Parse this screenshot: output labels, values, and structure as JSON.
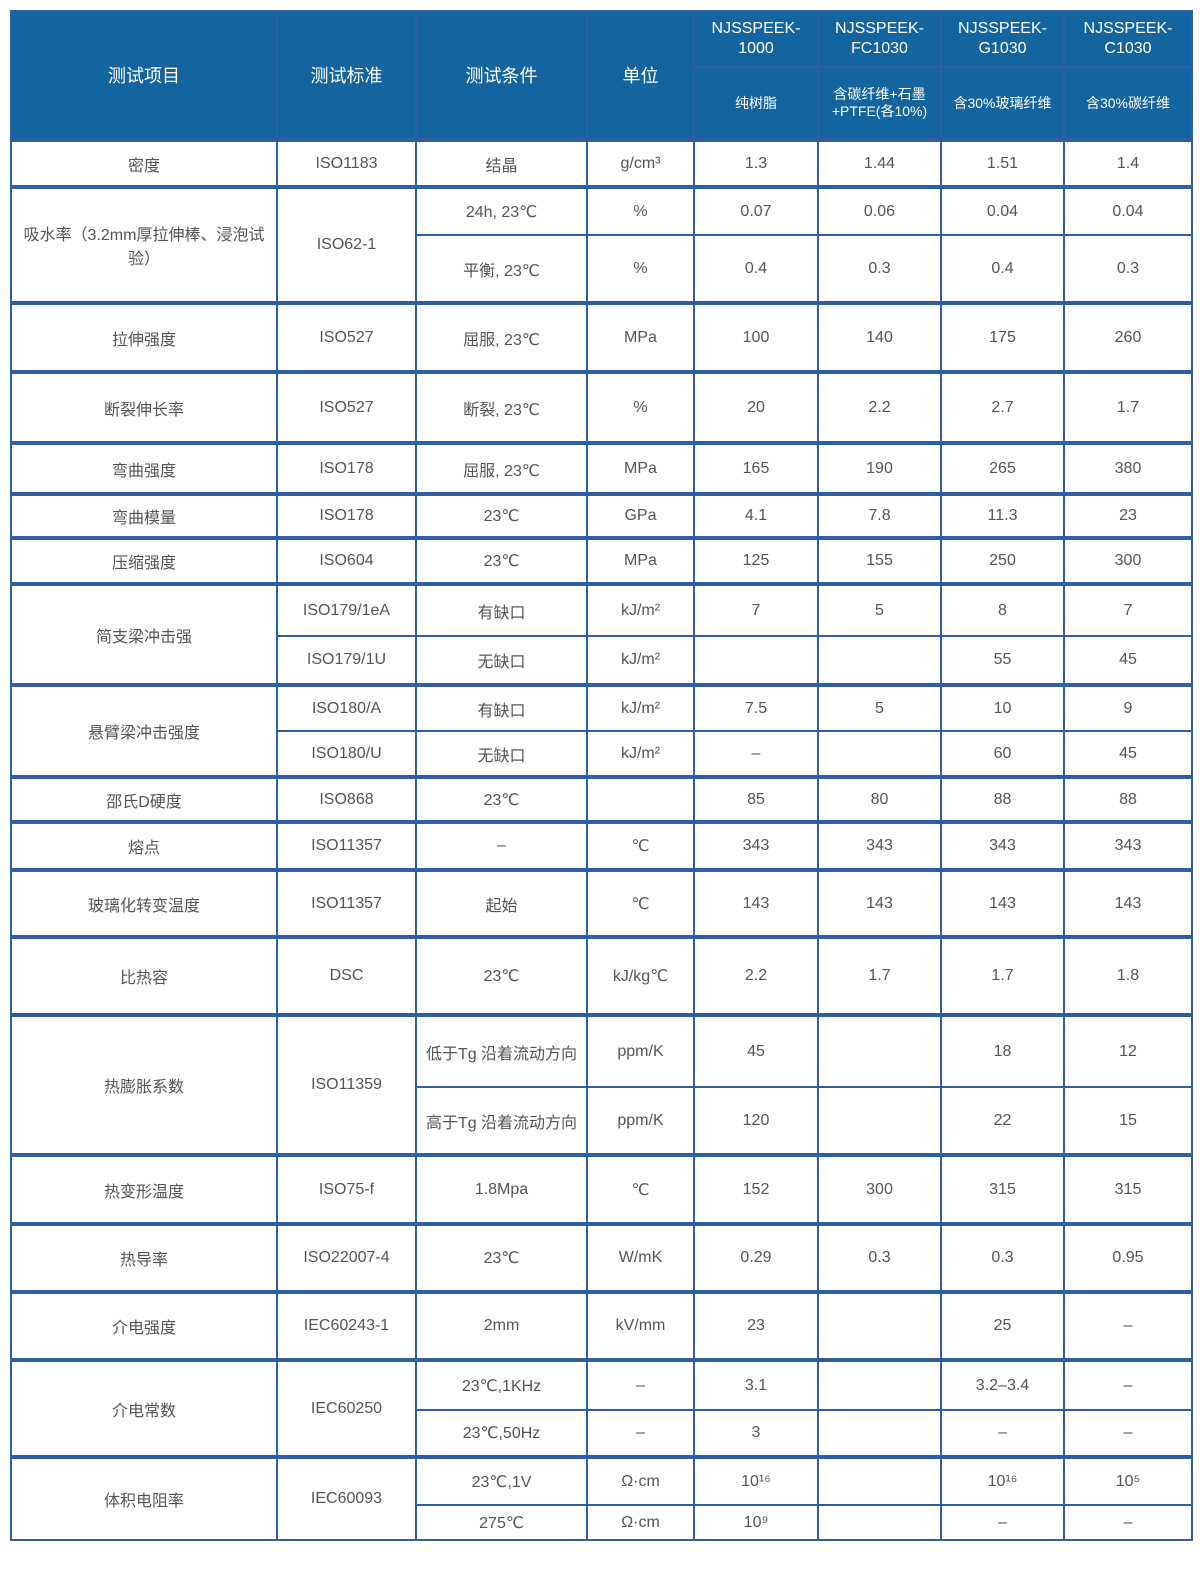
{
  "header": {
    "item": "测试项目",
    "standard": "测试标准",
    "condition": "测试条件",
    "unit": "单位",
    "models": [
      {
        "name": "NJSSPEEK-1000",
        "desc": "纯树脂"
      },
      {
        "name": "NJSSPEEK-FC1030",
        "desc": "含碳纤维+石墨+PTFE(各10%)"
      },
      {
        "name": "NJSSPEEK-G1030",
        "desc": "含30%玻璃纤维"
      },
      {
        "name": "NJSSPEEK-C1030",
        "desc": "含30%碳纤维"
      }
    ]
  },
  "colors": {
    "header_bg": "#13649f",
    "border": "#2f5da8",
    "text": "#555555"
  },
  "groups": [
    {
      "item": "密度",
      "standard": "ISO1183",
      "rows": [
        {
          "condition": "结晶",
          "unit": "g/cm³",
          "values": [
            "1.3",
            "1.44",
            "1.51",
            "1.4"
          ]
        }
      ]
    },
    {
      "item": "吸水率（3.2mm厚拉伸棒、浸泡试验）",
      "standard": "ISO62-1",
      "rows": [
        {
          "condition": "24h, 23℃",
          "unit": "%",
          "values": [
            "0.07",
            "0.06",
            "0.04",
            "0.04"
          ]
        },
        {
          "condition": "平衡, 23℃",
          "unit": "%",
          "values": [
            "0.4",
            "0.3",
            "0.4",
            "0.3"
          ]
        }
      ]
    },
    {
      "item": "拉伸强度",
      "standard": "ISO527",
      "rows": [
        {
          "condition": "屈服, 23℃",
          "unit": "MPa",
          "values": [
            "100",
            "140",
            "175",
            "260"
          ]
        }
      ]
    },
    {
      "item": "断裂伸长率",
      "standard": "ISO527",
      "rows": [
        {
          "condition": "断裂, 23℃",
          "unit": "%",
          "values": [
            "20",
            "2.2",
            "2.7",
            "1.7"
          ]
        }
      ]
    },
    {
      "item": "弯曲强度",
      "standard": "ISO178",
      "rows": [
        {
          "condition": "屈服, 23℃",
          "unit": "MPa",
          "values": [
            "165",
            "190",
            "265",
            "380"
          ]
        }
      ]
    },
    {
      "item": "弯曲模量",
      "standard": "ISO178",
      "rows": [
        {
          "condition": "23℃",
          "unit": "GPa",
          "values": [
            "4.1",
            "7.8",
            "11.3",
            "23"
          ]
        }
      ]
    },
    {
      "item": "压缩强度",
      "standard": "ISO604",
      "rows": [
        {
          "condition": "23℃",
          "unit": "MPa",
          "values": [
            "125",
            "155",
            "250",
            "300"
          ]
        }
      ]
    },
    {
      "item": "简支梁冲击强",
      "standard": "",
      "rows": [
        {
          "standard": "ISO179/1eA",
          "condition": "有缺口",
          "unit": "kJ/m²",
          "values": [
            "7",
            "5",
            "8",
            "7"
          ]
        },
        {
          "standard": "ISO179/1U",
          "condition": "无缺口",
          "unit": "kJ/m²",
          "values": [
            "",
            "",
            "55",
            "45"
          ]
        }
      ]
    },
    {
      "item": "悬臂梁冲击强度",
      "standard": "",
      "rows": [
        {
          "standard": "ISO180/A",
          "condition": "有缺口",
          "unit": "kJ/m²",
          "values": [
            "7.5",
            "5",
            "10",
            "9"
          ]
        },
        {
          "standard": "ISO180/U",
          "condition": "无缺口",
          "unit": "kJ/m²",
          "values": [
            "–",
            "",
            "60",
            "45"
          ]
        }
      ]
    },
    {
      "item": "邵氏D硬度",
      "standard": "ISO868",
      "rows": [
        {
          "condition": "23℃",
          "unit": "",
          "values": [
            "85",
            "80",
            "88",
            "88"
          ]
        }
      ]
    },
    {
      "item": "熔点",
      "standard": "ISO11357",
      "rows": [
        {
          "condition": "–",
          "unit": "℃",
          "values": [
            "343",
            "343",
            "343",
            "343"
          ]
        }
      ]
    },
    {
      "item": "玻璃化转变温度",
      "standard": "ISO11357",
      "rows": [
        {
          "condition": "起始",
          "unit": "℃",
          "values": [
            "143",
            "143",
            "143",
            "143"
          ]
        }
      ]
    },
    {
      "item": "比热容",
      "standard": "DSC",
      "rows": [
        {
          "condition": "23℃",
          "unit": "kJ/kg℃",
          "values": [
            "2.2",
            "1.7",
            "1.7",
            "1.8"
          ]
        }
      ]
    },
    {
      "item": "热膨胀系数",
      "standard": "ISO11359",
      "rows": [
        {
          "condition": "低于Tg 沿着流动方向",
          "unit": "ppm/K",
          "values": [
            "45",
            "",
            "18",
            "12"
          ]
        },
        {
          "condition": "高于Tg 沿着流动方向",
          "unit": "ppm/K",
          "values": [
            "120",
            "",
            "22",
            "15"
          ]
        }
      ]
    },
    {
      "item": "热变形温度",
      "standard": "ISO75-f",
      "rows": [
        {
          "condition": "1.8Mpa",
          "unit": "℃",
          "values": [
            "152",
            "300",
            "315",
            "315"
          ]
        }
      ]
    },
    {
      "item": "热导率",
      "standard": "ISO22007-4",
      "rows": [
        {
          "condition": "23℃",
          "unit": "W/mK",
          "values": [
            "0.29",
            "0.3",
            "0.3",
            "0.95"
          ]
        }
      ]
    },
    {
      "item": "介电强度",
      "standard": "IEC60243-1",
      "rows": [
        {
          "condition": "2mm",
          "unit": "kV/mm",
          "values": [
            "23",
            "",
            "25",
            "–"
          ]
        }
      ]
    },
    {
      "item": "介电常数",
      "standard": "IEC60250",
      "rows": [
        {
          "condition": "23℃,1KHz",
          "unit": "–",
          "values": [
            "3.1",
            "",
            "3.2–3.4",
            "–"
          ]
        },
        {
          "condition": "23℃,50Hz",
          "unit": "–",
          "values": [
            "3",
            "",
            "–",
            "–"
          ]
        }
      ]
    },
    {
      "item": "体积电阻率",
      "standard": "IEC60093",
      "rows": [
        {
          "condition": "23℃,1V",
          "unit": "Ω·cm",
          "values": [
            "10¹⁶",
            "",
            "10¹⁶",
            "10⁵"
          ]
        },
        {
          "condition": "275℃",
          "unit": "Ω·cm",
          "values": [
            "10⁹",
            "",
            "–",
            "–"
          ]
        }
      ]
    }
  ]
}
